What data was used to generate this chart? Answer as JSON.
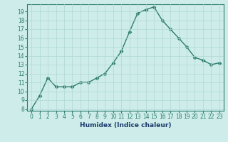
{
  "xlabel": "Humidex (Indice chaleur)",
  "x": [
    0,
    1,
    2,
    3,
    4,
    5,
    6,
    7,
    8,
    9,
    10,
    11,
    12,
    13,
    14,
    15,
    16,
    17,
    18,
    19,
    20,
    21,
    22,
    23
  ],
  "y": [
    8,
    9.5,
    11.5,
    10.5,
    10.5,
    10.5,
    11.0,
    11.0,
    11.5,
    12.0,
    13.2,
    14.5,
    16.7,
    18.8,
    19.2,
    19.5,
    18.0,
    17.0,
    16.0,
    15.0,
    13.8,
    13.5,
    13.0,
    13.2
  ],
  "line_color": "#2e7d6e",
  "marker": "D",
  "marker_size": 2.5,
  "bg_color": "#cdecea",
  "grid_color": "#afd8d4",
  "ylim": [
    7.8,
    19.8
  ],
  "yticks": [
    8,
    9,
    10,
    11,
    12,
    13,
    14,
    15,
    16,
    17,
    18,
    19
  ],
  "xticks": [
    0,
    1,
    2,
    3,
    4,
    5,
    6,
    7,
    8,
    9,
    10,
    11,
    12,
    13,
    14,
    15,
    16,
    17,
    18,
    19,
    20,
    21,
    22,
    23
  ],
  "tick_label_fontsize": 5.5,
  "xlabel_fontsize": 6.5,
  "line_width": 1.0,
  "axis_bg_color": "#cdecea",
  "xlabel_color": "#1a3a6a",
  "spine_color": "#2e7d6e"
}
